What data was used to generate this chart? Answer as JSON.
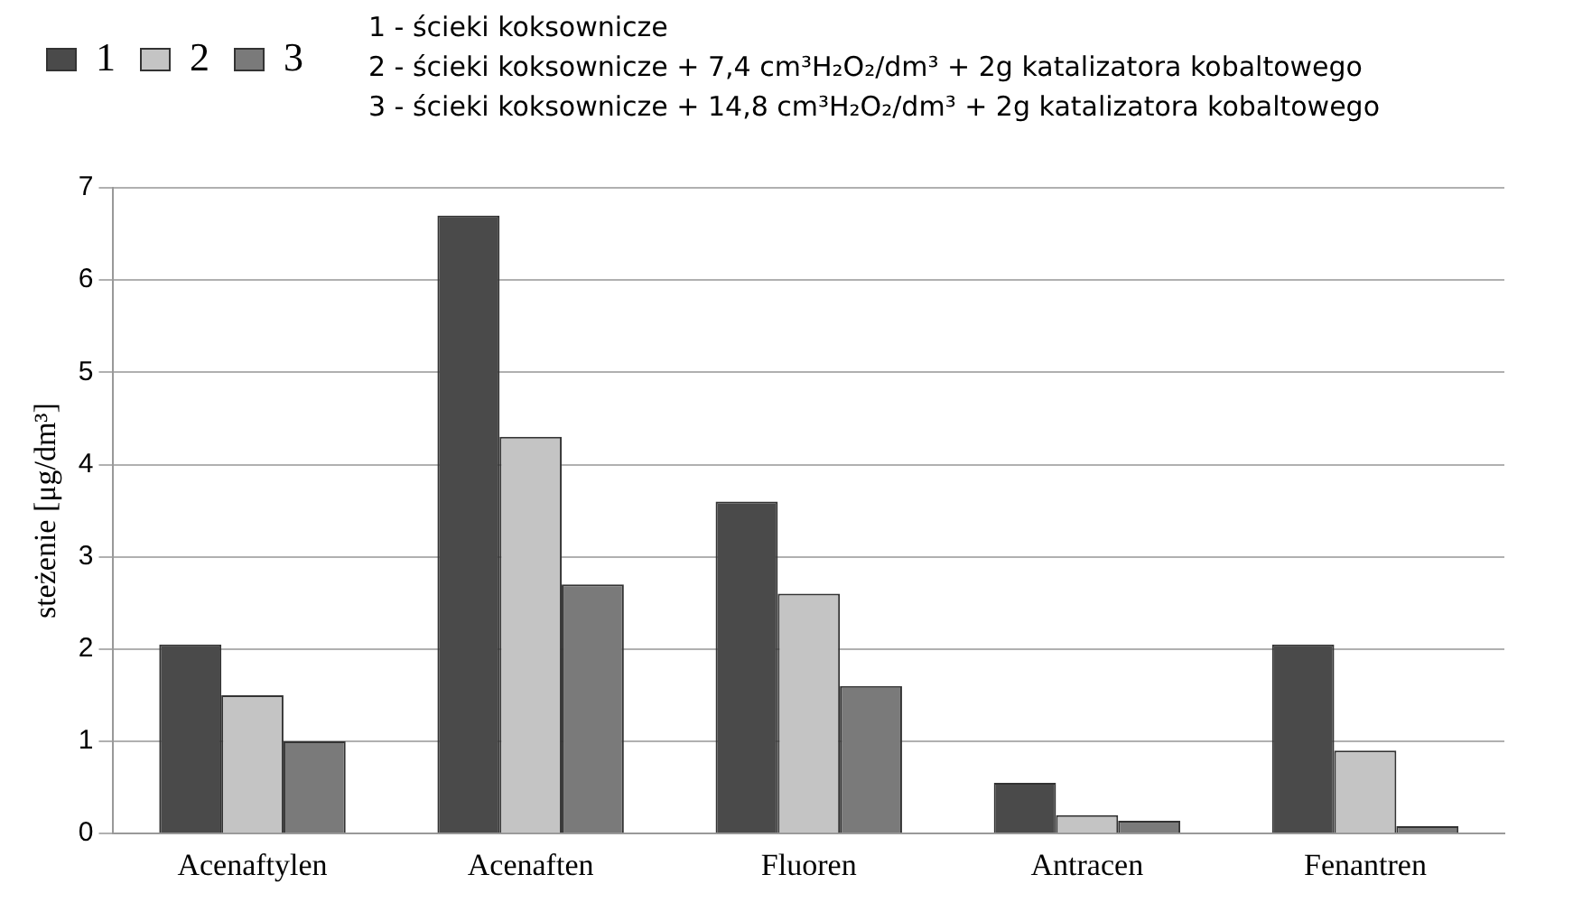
{
  "chart_data": {
    "type": "bar",
    "categories": [
      "Acenaftylen",
      "Acenaften",
      "Fluoren",
      "Antracen",
      "Fenantren"
    ],
    "series": [
      {
        "name": "1",
        "color": "#4a4a4a",
        "values": [
          2.05,
          6.7,
          3.6,
          0.55,
          2.05
        ]
      },
      {
        "name": "2",
        "color": "#c4c4c4",
        "values": [
          1.5,
          4.3,
          2.6,
          0.2,
          0.9
        ]
      },
      {
        "name": "3",
        "color": "#7a7a7a",
        "values": [
          1.0,
          2.7,
          1.6,
          0.14,
          0.08
        ]
      }
    ],
    "ylabel": "steżenie [μg/dm³]",
    "ylim": [
      0,
      7
    ],
    "yticks": [
      0,
      1,
      2,
      3,
      4,
      5,
      6,
      7
    ],
    "grid": "y",
    "legend": "top left",
    "annotations": [
      "1 - ścieki koksownicze",
      "2 - ścieki koksownicze + 7,4 cm³H₂O₂/dm³ + 2g katalizatora kobaltowego",
      "3 - ścieki koksownicze + 14,8 cm³H₂O₂/dm³ + 2g katalizatora kobaltowego"
    ]
  }
}
